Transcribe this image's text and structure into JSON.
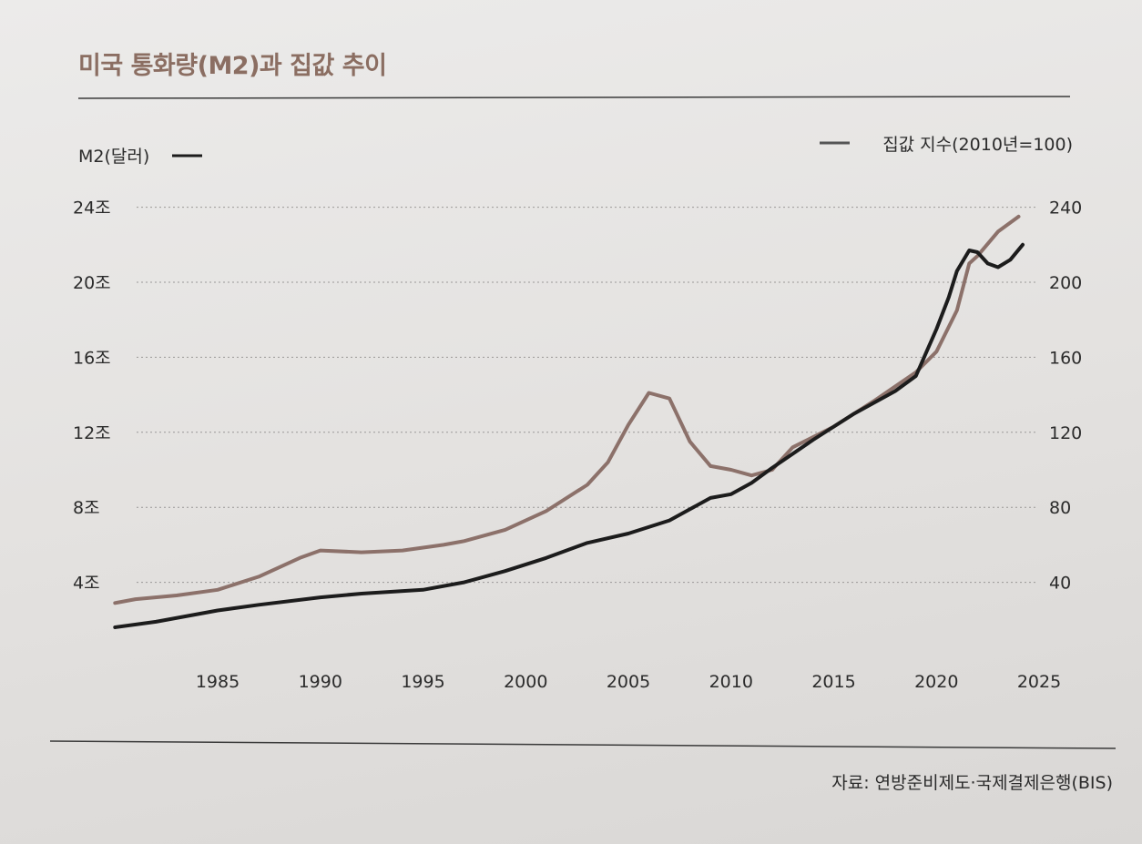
{
  "title": "미국 통화량(M2)과 집값 추이",
  "source": "자료: 연방준비제도·국제결제은행(BIS)",
  "colors": {
    "m2": "#1c1c1c",
    "house": "#8c716a",
    "title": "#8b6e62",
    "grid": "#9a9897"
  },
  "chart_data": {
    "type": "line",
    "left_axis": {
      "label": "M2(달러)",
      "ticks": [
        "4조",
        "8조",
        "12조",
        "16조",
        "20조",
        "24조"
      ],
      "tick_values": [
        4,
        8,
        12,
        16,
        20,
        24
      ],
      "range": [
        0,
        24
      ]
    },
    "right_axis": {
      "label": "집값 지수(2010년=100)",
      "ticks": [
        "40",
        "80",
        "120",
        "160",
        "200",
        "240"
      ],
      "tick_values": [
        40,
        80,
        120,
        160,
        200,
        240
      ],
      "range": [
        0,
        240
      ]
    },
    "x_axis": {
      "ticks": [
        "1985",
        "1990",
        "1995",
        "2000",
        "2005",
        "2010",
        "2015",
        "2020",
        "2025"
      ],
      "tick_values": [
        1985,
        1990,
        1995,
        2000,
        2005,
        2010,
        2015,
        2020,
        2025
      ],
      "range": [
        1980,
        2025
      ]
    },
    "grid": true,
    "series": [
      {
        "name": "M2(달러)",
        "axis": "left",
        "points": [
          [
            1980,
            1.6
          ],
          [
            1982,
            1.9
          ],
          [
            1985,
            2.5
          ],
          [
            1987,
            2.8
          ],
          [
            1990,
            3.2
          ],
          [
            1992,
            3.4
          ],
          [
            1995,
            3.6
          ],
          [
            1997,
            4.0
          ],
          [
            1999,
            4.6
          ],
          [
            2001,
            5.3
          ],
          [
            2003,
            6.1
          ],
          [
            2005,
            6.6
          ],
          [
            2007,
            7.3
          ],
          [
            2008,
            7.9
          ],
          [
            2009,
            8.5
          ],
          [
            2010,
            8.7
          ],
          [
            2011,
            9.3
          ],
          [
            2012,
            10.1
          ],
          [
            2014,
            11.6
          ],
          [
            2016,
            13.0
          ],
          [
            2018,
            14.2
          ],
          [
            2019,
            15.0
          ],
          [
            2020,
            17.5
          ],
          [
            2020.6,
            19.2
          ],
          [
            2021,
            20.6
          ],
          [
            2021.6,
            21.7
          ],
          [
            2022,
            21.6
          ],
          [
            2022.5,
            21.0
          ],
          [
            2023,
            20.8
          ],
          [
            2023.6,
            21.2
          ],
          [
            2024.2,
            22.0
          ]
        ]
      },
      {
        "name": "집값 지수(2010년=100)",
        "axis": "right",
        "points": [
          [
            1980,
            29
          ],
          [
            1981,
            31
          ],
          [
            1983,
            33
          ],
          [
            1985,
            36
          ],
          [
            1987,
            43
          ],
          [
            1989,
            53
          ],
          [
            1990,
            57
          ],
          [
            1992,
            56
          ],
          [
            1994,
            57
          ],
          [
            1996,
            60
          ],
          [
            1997,
            62
          ],
          [
            1999,
            68
          ],
          [
            2001,
            78
          ],
          [
            2003,
            92
          ],
          [
            2004,
            104
          ],
          [
            2005,
            124
          ],
          [
            2006,
            141
          ],
          [
            2007,
            138
          ],
          [
            2008,
            115
          ],
          [
            2009,
            102
          ],
          [
            2010,
            100
          ],
          [
            2011,
            97
          ],
          [
            2012,
            100
          ],
          [
            2013,
            112
          ],
          [
            2015,
            123
          ],
          [
            2017,
            137
          ],
          [
            2019,
            152
          ],
          [
            2020,
            163
          ],
          [
            2021,
            185
          ],
          [
            2021.6,
            210
          ],
          [
            2022,
            214
          ],
          [
            2023,
            227
          ],
          [
            2024,
            235
          ]
        ]
      }
    ]
  }
}
